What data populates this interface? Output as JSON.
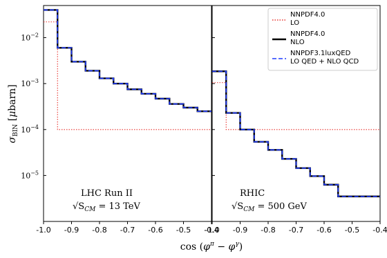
{
  "chart_data": [
    {
      "type": "line",
      "panel_label": "LHC Run II",
      "energy_label_lhs": "√S",
      "energy_label_sub": "CM",
      "energy_label_rhs": " = 13 TeV",
      "x_bin_edges": [
        -1.0,
        -0.95,
        -0.9,
        -0.85,
        -0.8,
        -0.75,
        -0.7,
        -0.65,
        -0.6,
        -0.55,
        -0.5,
        -0.45,
        -0.4
      ],
      "series": [
        {
          "name": "NNPDF4.0 LO",
          "values": [
            0.022,
            0.0001,
            0.0001,
            0.0001,
            0.0001,
            0.0001,
            0.0001,
            0.0001,
            0.0001,
            0.0001,
            0.0001,
            0.0001
          ]
        },
        {
          "name": "NNPDF4.0 NLO",
          "values": [
            0.04,
            0.006,
            0.003,
            0.0019,
            0.0013,
            0.001,
            0.00075,
            0.0006,
            0.00047,
            0.00036,
            0.0003,
            0.00025
          ]
        },
        {
          "name": "NNPDF3.1luxQED LO QED + NLO QCD",
          "values": [
            0.04,
            0.006,
            0.003,
            0.0019,
            0.0013,
            0.001,
            0.00075,
            0.0006,
            0.00047,
            0.00036,
            0.0003,
            0.00025
          ]
        }
      ],
      "ylim": [
        1e-06,
        0.05
      ],
      "ylog": true,
      "xlim": [
        -1.0,
        -0.5
      ],
      "xticks": [
        "-1.0",
        "-0.9",
        "-0.8",
        "-0.7",
        "-0.6",
        "-0.5",
        "-0.4"
      ]
    },
    {
      "type": "line",
      "panel_label": "RHIC",
      "energy_label_lhs": "√S",
      "energy_label_sub": "CM",
      "energy_label_rhs": " = 500 GeV",
      "x_bin_edges": [
        -1.0,
        -0.95,
        -0.9,
        -0.85,
        -0.8,
        -0.75,
        -0.7,
        -0.65,
        -0.6,
        -0.55,
        -0.5,
        -0.45,
        -0.4
      ],
      "series": [
        {
          "name": "NNPDF4.0 LO",
          "values": [
            0.00105,
            0.0001,
            0.0001,
            0.0001,
            0.0001,
            0.0001,
            0.0001,
            0.0001,
            0.0001,
            0.0001,
            0.0001,
            0.0001
          ]
        },
        {
          "name": "NNPDF4.0 NLO",
          "values": [
            0.00185,
            0.00023,
            0.0001,
            5.4e-05,
            3.6e-05,
            2.3e-05,
            1.45e-05,
            9.7e-06,
            6.3e-06,
            3.5e-06,
            3.5e-06,
            3.5e-06
          ]
        },
        {
          "name": "NNPDF3.1luxQED LO QED + NLO QCD",
          "values": [
            0.00185,
            0.00023,
            0.0001,
            5.4e-05,
            3.6e-05,
            2.3e-05,
            1.45e-05,
            9.7e-06,
            6.3e-06,
            3.5e-06,
            3.5e-06,
            3.5e-06
          ]
        }
      ],
      "ylim": [
        1e-06,
        0.05
      ],
      "ylog": true,
      "xlim": [
        -1.0,
        -0.4
      ],
      "xticks": [
        "-1.0",
        "-0.9",
        "-0.8",
        "-0.7",
        "-0.6",
        "-0.5",
        "-0.4"
      ]
    }
  ],
  "axes": {
    "xlabel": "cos (φ^π − φ^γ)",
    "ylabel": "σ_BIN [μbarn]",
    "yticks": [
      {
        "value": 0.01,
        "base": "10",
        "exp": "−2"
      },
      {
        "value": 0.001,
        "base": "10",
        "exp": "−3"
      },
      {
        "value": 0.0001,
        "base": "10",
        "exp": "−4"
      },
      {
        "value": 1e-05,
        "base": "10",
        "exp": "−5"
      }
    ]
  },
  "legend": {
    "position": "top-right",
    "entries": [
      {
        "line1": "NNPDF4.0",
        "line2": "LO",
        "color": "#e8322d",
        "style": "dotted"
      },
      {
        "line1": "NNPDF4.0",
        "line2": "NLO",
        "color": "#000000",
        "style": "solid"
      },
      {
        "line1": "NNPDF3.1luxQED",
        "line2": "LO QED + NLO QCD",
        "color": "#1f3bff",
        "style": "dashed"
      }
    ]
  },
  "colors": {
    "lo": "#e8322d",
    "nlo": "#000000",
    "qed": "#1f3bff"
  }
}
